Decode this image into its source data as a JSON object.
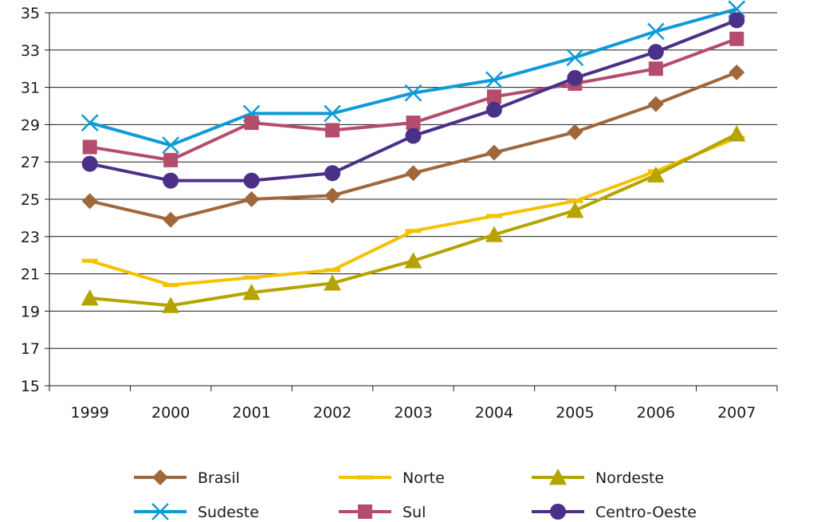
{
  "chart_data": {
    "type": "line",
    "x": [
      "1999",
      "2000",
      "2001",
      "2002",
      "2003",
      "2004",
      "2005",
      "2006",
      "2007"
    ],
    "ylim": [
      15,
      35
    ],
    "yticks": [
      15,
      17,
      19,
      21,
      23,
      25,
      27,
      29,
      31,
      33,
      35
    ],
    "grid": true,
    "legend_position": "bottom",
    "series": [
      {
        "name": "Brasil",
        "color": "#a0673a",
        "marker": "diamond",
        "values": [
          24.9,
          23.9,
          25.0,
          25.2,
          26.4,
          27.5,
          28.6,
          30.1,
          31.8
        ]
      },
      {
        "name": "Norte",
        "color": "#f5c200",
        "marker": "dash",
        "values": [
          21.7,
          20.4,
          20.8,
          21.2,
          23.3,
          24.1,
          24.9,
          26.5,
          28.3
        ]
      },
      {
        "name": "Nordeste",
        "color": "#b5a300",
        "marker": "triangle",
        "values": [
          19.7,
          19.3,
          20.0,
          20.5,
          21.7,
          23.1,
          24.4,
          26.3,
          28.5
        ]
      },
      {
        "name": "Sudeste",
        "color": "#0f9bd7",
        "marker": "x",
        "values": [
          29.1,
          27.9,
          29.6,
          29.6,
          30.7,
          31.4,
          32.6,
          34.0,
          35.2
        ]
      },
      {
        "name": "Sul",
        "color": "#b44c6b",
        "marker": "square",
        "values": [
          27.8,
          27.1,
          29.1,
          28.7,
          29.1,
          30.5,
          31.2,
          32.0,
          33.6
        ]
      },
      {
        "name": "Centro-Oeste",
        "color": "#4a3187",
        "marker": "circle",
        "values": [
          26.9,
          26.0,
          26.0,
          26.4,
          28.4,
          29.8,
          31.5,
          32.9,
          34.6
        ]
      }
    ]
  }
}
